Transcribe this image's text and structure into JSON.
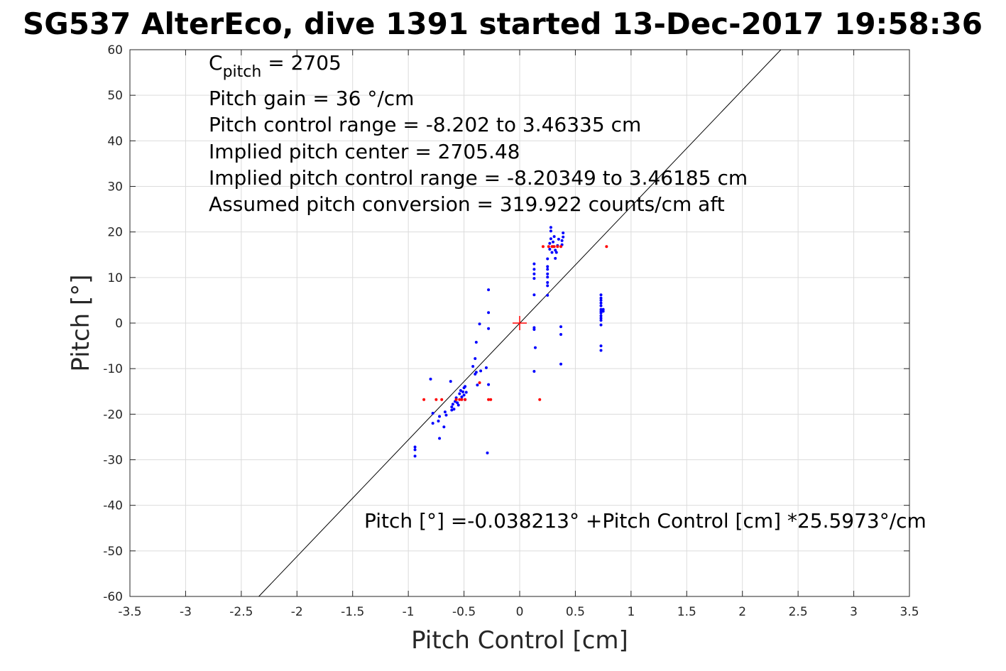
{
  "chart_data": {
    "type": "scatter",
    "title": "SG537 AlterEco, dive 1391 started 13-Dec-2017 19:58:36",
    "xlabel": "Pitch Control [cm]",
    "ylabel": "Pitch [°]",
    "xlim": [
      -3.5,
      3.5
    ],
    "ylim": [
      -60,
      60
    ],
    "xticks": [
      -3.5,
      -3,
      -2.5,
      -2,
      -1.5,
      -1,
      -0.5,
      0,
      0.5,
      1,
      1.5,
      2,
      2.5,
      3,
      3.5
    ],
    "xtick_labels": [
      "-3.5",
      "-3",
      "-2.5",
      "-2",
      "-1.5",
      "-1",
      "-0.5",
      "0",
      "0.5",
      "1",
      "1.5",
      "2",
      "2.5",
      "3",
      "3.5"
    ],
    "yticks": [
      -60,
      -50,
      -40,
      -30,
      -20,
      -10,
      0,
      10,
      20,
      30,
      40,
      50,
      60
    ],
    "ytick_labels": [
      "-60",
      "-50",
      "-40",
      "-30",
      "-20",
      "-10",
      "0",
      "10",
      "20",
      "30",
      "40",
      "50",
      "60"
    ],
    "grid": true,
    "colors": {
      "fit_line": "#000000",
      "blue_points": "#0000ff",
      "red_points": "#ff0000",
      "center_marker": "#ff0000",
      "grid": "#dcdcdc",
      "axes": "#262626"
    },
    "annotations": {
      "cpitch_base": "C",
      "cpitch_sub": "pitch",
      "cpitch_value": " = 2705",
      "lines": [
        "Pitch gain = 36 °/cm",
        "Pitch control range = -8.202 to 3.46335 cm",
        "Implied pitch center = 2705.48",
        "Implied pitch control range = -8.20349 to 3.46185 cm",
        "Assumed pitch conversion = 319.922 counts/cm aft"
      ],
      "fit_equation": "Pitch [°] =-0.038213° +Pitch Control [cm] *25.5973°/cm"
    },
    "fit": {
      "intercept": -0.038213,
      "slope": 25.5973
    },
    "center_marker": {
      "x": 0,
      "y": 0
    },
    "series": [
      {
        "color": "#0000ff",
        "points": [
          [
            -0.94,
            -27.2
          ],
          [
            -0.94,
            -27.8
          ],
          [
            -0.94,
            -29.2
          ],
          [
            -0.8,
            -12.3
          ],
          [
            -0.78,
            -19.8
          ],
          [
            -0.78,
            -22
          ],
          [
            -0.73,
            -21.5
          ],
          [
            -0.72,
            -25.3
          ],
          [
            -0.72,
            -20.5
          ],
          [
            -0.68,
            -22.8
          ],
          [
            -0.67,
            -19.5
          ],
          [
            -0.66,
            -20.2
          ],
          [
            -0.62,
            -12.8
          ],
          [
            -0.61,
            -19.1
          ],
          [
            -0.61,
            -18.4
          ],
          [
            -0.6,
            -17.8
          ],
          [
            -0.59,
            -18.9
          ],
          [
            -0.58,
            -17.2
          ],
          [
            -0.57,
            -16.4
          ],
          [
            -0.56,
            -17.5
          ],
          [
            -0.55,
            -18
          ],
          [
            -0.54,
            -15.5
          ],
          [
            -0.53,
            -14.8
          ],
          [
            -0.52,
            -16.2
          ],
          [
            -0.51,
            -15.1
          ],
          [
            -0.5,
            -14.2
          ],
          [
            -0.5,
            -15.8
          ],
          [
            -0.49,
            -13.9
          ],
          [
            -0.49,
            -16.8
          ],
          [
            -0.48,
            -15.2
          ],
          [
            -0.42,
            -9.5
          ],
          [
            -0.4,
            -7.8
          ],
          [
            -0.4,
            -11.2
          ],
          [
            -0.39,
            -4.2
          ],
          [
            -0.39,
            -10.8
          ],
          [
            -0.38,
            -13.6
          ],
          [
            -0.36,
            -0.2
          ],
          [
            -0.35,
            -10.5
          ],
          [
            -0.3,
            -9.8
          ],
          [
            -0.29,
            -28.5
          ],
          [
            -0.28,
            7.3
          ],
          [
            -0.28,
            2.3
          ],
          [
            -0.28,
            -1.2
          ],
          [
            -0.28,
            -13.5
          ],
          [
            0.13,
            6.2
          ],
          [
            0.13,
            -1
          ],
          [
            0.13,
            -1.4
          ],
          [
            0.13,
            -10.6
          ],
          [
            0.14,
            -5.4
          ],
          [
            0.13,
            9.8
          ],
          [
            0.13,
            10.8
          ],
          [
            0.13,
            11.8
          ],
          [
            0.13,
            13
          ],
          [
            0.25,
            6.1
          ],
          [
            0.25,
            8.2
          ],
          [
            0.25,
            8.9
          ],
          [
            0.25,
            10.1
          ],
          [
            0.25,
            10.8
          ],
          [
            0.25,
            11.8
          ],
          [
            0.25,
            12.4
          ],
          [
            0.25,
            14.1
          ],
          [
            0.27,
            16.2
          ],
          [
            0.27,
            17.5
          ],
          [
            0.28,
            18.5
          ],
          [
            0.28,
            20.2
          ],
          [
            0.28,
            21
          ],
          [
            0.29,
            15.5
          ],
          [
            0.3,
            16.8
          ],
          [
            0.3,
            17.8
          ],
          [
            0.31,
            19
          ],
          [
            0.32,
            16
          ],
          [
            0.32,
            14.2
          ],
          [
            0.33,
            15.5
          ],
          [
            0.34,
            17
          ],
          [
            0.35,
            18.4
          ],
          [
            0.37,
            -0.8
          ],
          [
            0.37,
            -2.5
          ],
          [
            0.37,
            -9
          ],
          [
            0.38,
            17.2
          ],
          [
            0.38,
            18.1
          ],
          [
            0.39,
            18.9
          ],
          [
            0.39,
            19.8
          ],
          [
            0.73,
            6.2
          ],
          [
            0.73,
            5.5
          ],
          [
            0.73,
            5
          ],
          [
            0.73,
            4.4
          ],
          [
            0.73,
            3.8
          ],
          [
            0.73,
            3
          ],
          [
            0.73,
            2.6
          ],
          [
            0.73,
            2.2
          ],
          [
            0.73,
            1.6
          ],
          [
            0.73,
            1.1
          ],
          [
            0.73,
            0.6
          ],
          [
            0.73,
            -0.4
          ],
          [
            0.73,
            -5
          ],
          [
            0.73,
            -6
          ],
          [
            0.75,
            3
          ],
          [
            0.75,
            2.6
          ]
        ]
      },
      {
        "color": "#ff0000",
        "points": [
          [
            -0.86,
            -16.8
          ],
          [
            -0.75,
            -16.8
          ],
          [
            -0.7,
            -16.8
          ],
          [
            -0.57,
            -16.8
          ],
          [
            -0.54,
            -16.8
          ],
          [
            -0.52,
            -16.8
          ],
          [
            -0.49,
            -16.8
          ],
          [
            -0.36,
            -13.1
          ],
          [
            -0.28,
            -16.8
          ],
          [
            -0.26,
            -16.8
          ],
          [
            0.18,
            -16.8
          ],
          [
            0.21,
            16.8
          ],
          [
            0.26,
            16.8
          ],
          [
            0.29,
            16.8
          ],
          [
            0.31,
            16.8
          ],
          [
            0.34,
            16.8
          ],
          [
            0.37,
            16.8
          ],
          [
            0.78,
            16.8
          ]
        ]
      }
    ]
  }
}
